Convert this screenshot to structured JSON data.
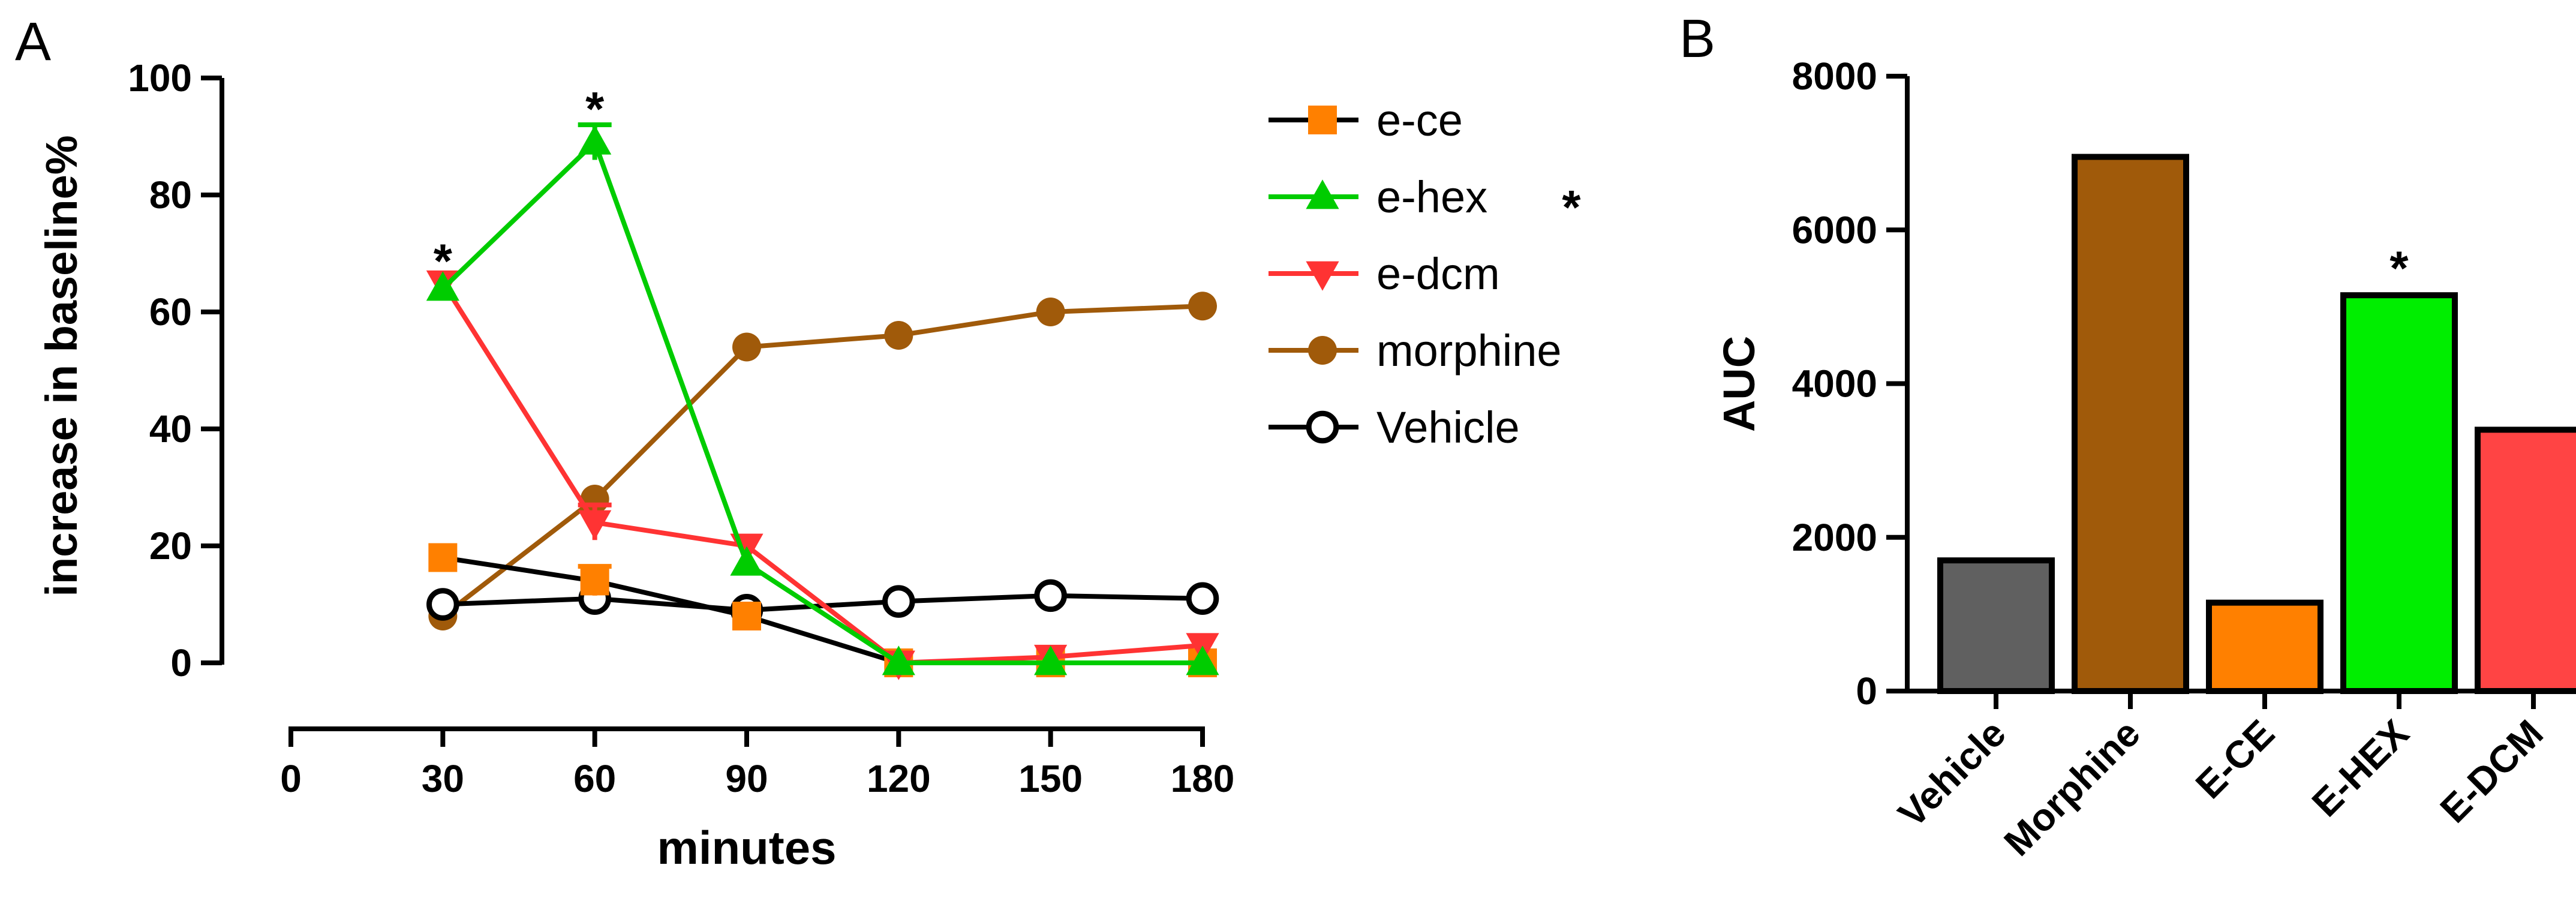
{
  "panels": {
    "a": "A",
    "b": "B"
  },
  "chart_data": [
    {
      "type": "line",
      "panel": "A",
      "xlabel": "minutes",
      "ylabel": "increase in baseline%",
      "xlim": [
        0,
        180
      ],
      "ylim": [
        0,
        100
      ],
      "xticks": [
        0,
        30,
        60,
        90,
        120,
        150,
        180
      ],
      "yticks": [
        0,
        20,
        40,
        60,
        80,
        100
      ],
      "x": [
        30,
        60,
        90,
        120,
        150,
        180
      ],
      "series": [
        {
          "name": "e-ce",
          "color": "#ff8000",
          "marker": "square",
          "line_color": "#000000",
          "values": [
            18,
            14,
            8,
            0,
            0,
            0
          ],
          "errors": [
            0,
            2.5,
            0,
            0,
            0,
            0
          ]
        },
        {
          "name": "e-hex",
          "color": "#00cc00",
          "marker": "triangle-up",
          "line_color": "#00cc00",
          "values": [
            64,
            89,
            17,
            0,
            0,
            0
          ],
          "errors": [
            0,
            3,
            0,
            0,
            0,
            0
          ]
        },
        {
          "name": "e-dcm",
          "color": "#ff3333",
          "marker": "triangle-down",
          "line_color": "#ff3333",
          "values": [
            65,
            24,
            20,
            0,
            1,
            3
          ],
          "errors": [
            0,
            3,
            0,
            0,
            0,
            0
          ]
        },
        {
          "name": "morphine",
          "color": "#a05a0a",
          "marker": "circle",
          "line_color": "#a05a0a",
          "values": [
            8,
            28,
            54,
            56,
            60,
            61
          ],
          "errors": [
            0,
            0,
            0,
            0,
            0,
            0
          ]
        },
        {
          "name": "Vehicle",
          "color": "#000000",
          "marker": "open-circle",
          "line_color": "#000000",
          "values": [
            10,
            11,
            9,
            10.5,
            11.5,
            11
          ],
          "errors": [
            0,
            0,
            0,
            0,
            0,
            0
          ]
        }
      ],
      "annotations": [
        {
          "text": "*",
          "x": 30,
          "y": 70
        },
        {
          "text": "*",
          "x": 60,
          "y": 96
        }
      ],
      "legend": {
        "position": "right",
        "entries": [
          "e-ce",
          "e-hex",
          "e-dcm",
          "morphine",
          "Vehicle"
        ],
        "e_hex_mark": "*"
      }
    },
    {
      "type": "bar",
      "panel": "B",
      "ylabel": "AUC",
      "ylim": [
        0,
        8000
      ],
      "yticks": [
        0,
        2000,
        4000,
        6000,
        8000
      ],
      "categories": [
        "Vehicle",
        "Morphine",
        "E-CE",
        "E-HEX",
        "E-DCM"
      ],
      "values": [
        1700,
        6950,
        1150,
        5150,
        3400
      ],
      "colors": [
        "#606060",
        "#a05a0a",
        "#ff8000",
        "#00ee00",
        "#ff4444"
      ],
      "annotations": [
        {
          "text": "*",
          "category": "E-HEX",
          "y": 5600
        }
      ]
    }
  ]
}
